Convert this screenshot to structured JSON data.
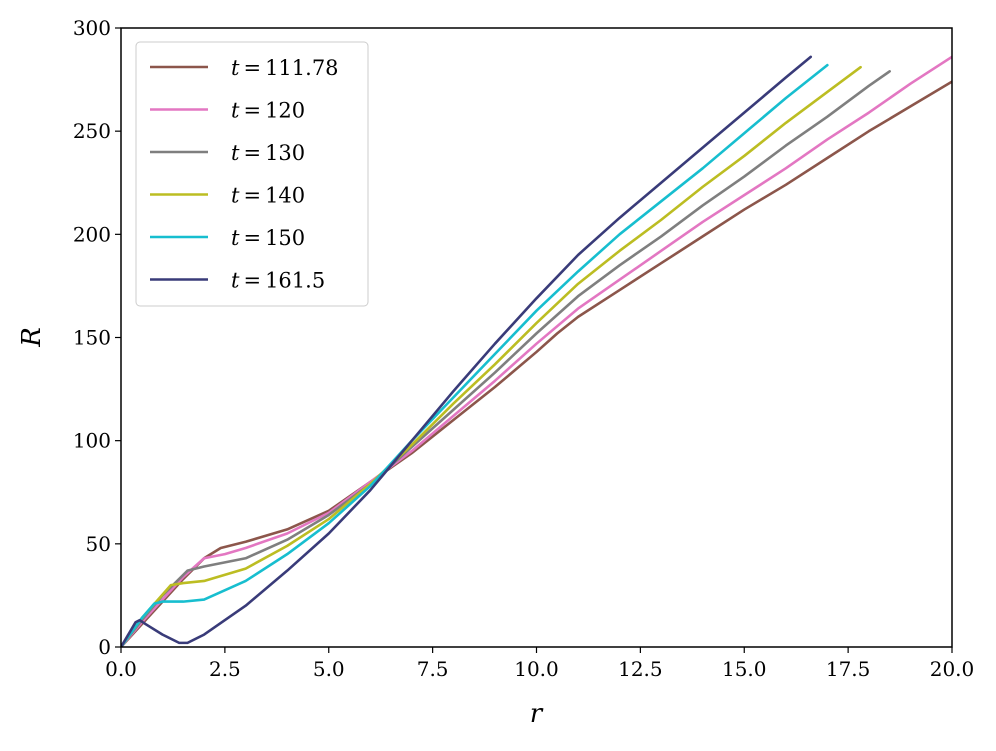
{
  "chart_data": {
    "type": "line",
    "xlabel": "r",
    "ylabel": "R",
    "xlim": [
      0,
      20
    ],
    "ylim": [
      0,
      300
    ],
    "xticks": [
      "0.0",
      "2.5",
      "5.0",
      "7.5",
      "10.0",
      "12.5",
      "15.0",
      "17.5",
      "20.0"
    ],
    "yticks": [
      "0",
      "50",
      "100",
      "150",
      "200",
      "250",
      "300"
    ],
    "grid": false,
    "legend_position": "top-left",
    "series": [
      {
        "name": "t = 111.78",
        "color": "#8c564b",
        "points": [
          [
            0,
            0
          ],
          [
            0.5,
            11
          ],
          [
            1.0,
            22
          ],
          [
            1.5,
            33
          ],
          [
            2.0,
            43
          ],
          [
            2.4,
            48
          ],
          [
            3.0,
            51
          ],
          [
            4.0,
            57
          ],
          [
            5.0,
            66
          ],
          [
            6.0,
            80
          ],
          [
            7.0,
            94
          ],
          [
            8.0,
            110
          ],
          [
            9.0,
            126
          ],
          [
            10.0,
            143
          ],
          [
            10.5,
            152
          ],
          [
            11.0,
            160
          ],
          [
            12.0,
            173
          ],
          [
            13.0,
            186
          ],
          [
            14.0,
            199
          ],
          [
            15.0,
            212
          ],
          [
            16.0,
            224
          ],
          [
            17.0,
            237
          ],
          [
            18.0,
            250
          ],
          [
            19.0,
            262
          ],
          [
            20.0,
            274
          ]
        ]
      },
      {
        "name": "t = 120",
        "color": "#e377c2",
        "points": [
          [
            0,
            0
          ],
          [
            0.5,
            12
          ],
          [
            1.0,
            23
          ],
          [
            1.5,
            34
          ],
          [
            2.0,
            43
          ],
          [
            2.5,
            45
          ],
          [
            3.0,
            48
          ],
          [
            4.0,
            55
          ],
          [
            5.0,
            65
          ],
          [
            6.0,
            80
          ],
          [
            7.0,
            95
          ],
          [
            8.0,
            112
          ],
          [
            9.0,
            129
          ],
          [
            10.0,
            147
          ],
          [
            11.0,
            164
          ],
          [
            12.0,
            178
          ],
          [
            13.0,
            192
          ],
          [
            14.0,
            206
          ],
          [
            15.0,
            219
          ],
          [
            16.0,
            232
          ],
          [
            17.0,
            246
          ],
          [
            18.0,
            259
          ],
          [
            19.0,
            273
          ],
          [
            20.0,
            286
          ]
        ]
      },
      {
        "name": "t = 130",
        "color": "#7f7f7f",
        "points": [
          [
            0,
            0
          ],
          [
            0.5,
            13
          ],
          [
            1.0,
            25
          ],
          [
            1.6,
            37
          ],
          [
            2.0,
            39
          ],
          [
            3.0,
            43
          ],
          [
            4.0,
            52
          ],
          [
            5.0,
            64
          ],
          [
            6.0,
            79
          ],
          [
            7.0,
            97
          ],
          [
            8.0,
            115
          ],
          [
            9.0,
            133
          ],
          [
            10.0,
            152
          ],
          [
            11.0,
            170
          ],
          [
            12.0,
            185
          ],
          [
            13.0,
            199
          ],
          [
            14.0,
            214
          ],
          [
            15.0,
            228
          ],
          [
            16.0,
            243
          ],
          [
            17.0,
            257
          ],
          [
            18.0,
            272
          ],
          [
            18.5,
            279
          ]
        ]
      },
      {
        "name": "t = 140",
        "color": "#bcbd22",
        "points": [
          [
            0,
            0
          ],
          [
            0.5,
            14
          ],
          [
            1.2,
            30
          ],
          [
            1.5,
            31
          ],
          [
            2.0,
            32
          ],
          [
            3.0,
            38
          ],
          [
            4.0,
            49
          ],
          [
            5.0,
            62
          ],
          [
            6.0,
            79
          ],
          [
            7.0,
            98
          ],
          [
            8.0,
            118
          ],
          [
            9.0,
            137
          ],
          [
            10.0,
            157
          ],
          [
            11.0,
            176
          ],
          [
            12.0,
            192
          ],
          [
            13.0,
            207
          ],
          [
            14.0,
            223
          ],
          [
            15.0,
            238
          ],
          [
            16.0,
            254
          ],
          [
            17.0,
            269
          ],
          [
            17.8,
            281
          ]
        ]
      },
      {
        "name": "t = 150",
        "color": "#17becf",
        "points": [
          [
            0,
            0
          ],
          [
            0.5,
            14
          ],
          [
            0.8,
            21
          ],
          [
            1.0,
            22
          ],
          [
            1.5,
            22
          ],
          [
            2.0,
            23
          ],
          [
            3.0,
            32
          ],
          [
            4.0,
            45
          ],
          [
            5.0,
            60
          ],
          [
            6.0,
            78
          ],
          [
            7.0,
            100
          ],
          [
            8.0,
            121
          ],
          [
            9.0,
            142
          ],
          [
            10.0,
            163
          ],
          [
            11.0,
            182
          ],
          [
            12.0,
            200
          ],
          [
            13.0,
            216
          ],
          [
            14.0,
            232
          ],
          [
            15.0,
            249
          ],
          [
            16.0,
            266
          ],
          [
            17.0,
            282
          ]
        ]
      },
      {
        "name": "t = 161.5",
        "color": "#393b79",
        "points": [
          [
            0,
            0
          ],
          [
            0.35,
            12
          ],
          [
            0.45,
            13
          ],
          [
            0.6,
            11
          ],
          [
            1.0,
            6
          ],
          [
            1.4,
            2
          ],
          [
            1.6,
            2
          ],
          [
            2.0,
            6
          ],
          [
            3.0,
            20
          ],
          [
            4.0,
            37
          ],
          [
            5.0,
            55
          ],
          [
            6.0,
            76
          ],
          [
            7.0,
            100
          ],
          [
            8.0,
            124
          ],
          [
            9.0,
            147
          ],
          [
            10.0,
            169
          ],
          [
            11.0,
            190
          ],
          [
            12.0,
            208
          ],
          [
            13.0,
            225
          ],
          [
            14.0,
            242
          ],
          [
            15.0,
            259
          ],
          [
            16.0,
            276
          ],
          [
            16.6,
            286
          ]
        ]
      }
    ]
  },
  "legend": {
    "entries": [
      {
        "var": "t",
        "eq": "=",
        "value": "111.78"
      },
      {
        "var": "t",
        "eq": "=",
        "value": "120"
      },
      {
        "var": "t",
        "eq": "=",
        "value": "130"
      },
      {
        "var": "t",
        "eq": "=",
        "value": "140"
      },
      {
        "var": "t",
        "eq": "=",
        "value": "150"
      },
      {
        "var": "t",
        "eq": "=",
        "value": "161.5"
      }
    ]
  }
}
